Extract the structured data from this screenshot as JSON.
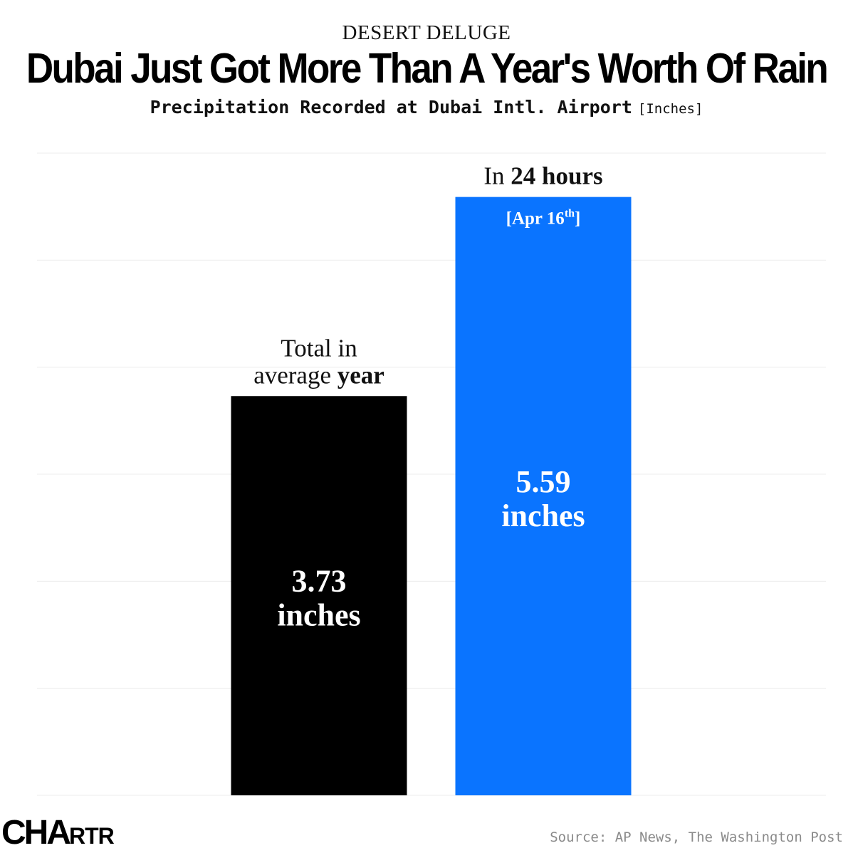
{
  "header": {
    "kicker": "DESERT DELUGE",
    "title": "Dubai Just Got More Than A Year's Worth Of Rain",
    "subtitle": "Precipitation Recorded at Dubai Intl. Airport",
    "unit_label": "[Inches]"
  },
  "chart_data": {
    "type": "bar",
    "categories": [
      "Total in average year",
      "In 24 hours [Apr 16th]"
    ],
    "values": [
      3.73,
      5.59
    ],
    "unit": "inches",
    "ylim": [
      0,
      6
    ],
    "grid": true,
    "bars": [
      {
        "value": 3.73,
        "value_label": "3.73",
        "unit_label": "inches",
        "color": "#000000",
        "label_lines": [
          [
            "Total in"
          ],
          [
            "average ",
            "year"
          ]
        ],
        "date_label": ""
      },
      {
        "value": 5.59,
        "value_label": "5.59",
        "unit_label": "inches",
        "color": "#0a74ff",
        "label_lines": [
          [
            "In ",
            "24 hours"
          ]
        ],
        "date_label": "[Apr 16",
        "date_suffix": "th",
        "date_close": "]"
      }
    ]
  },
  "footer": {
    "logo_big": "CHA",
    "logo_small": "RTR",
    "source": "Source: AP News, The Washington Post"
  }
}
